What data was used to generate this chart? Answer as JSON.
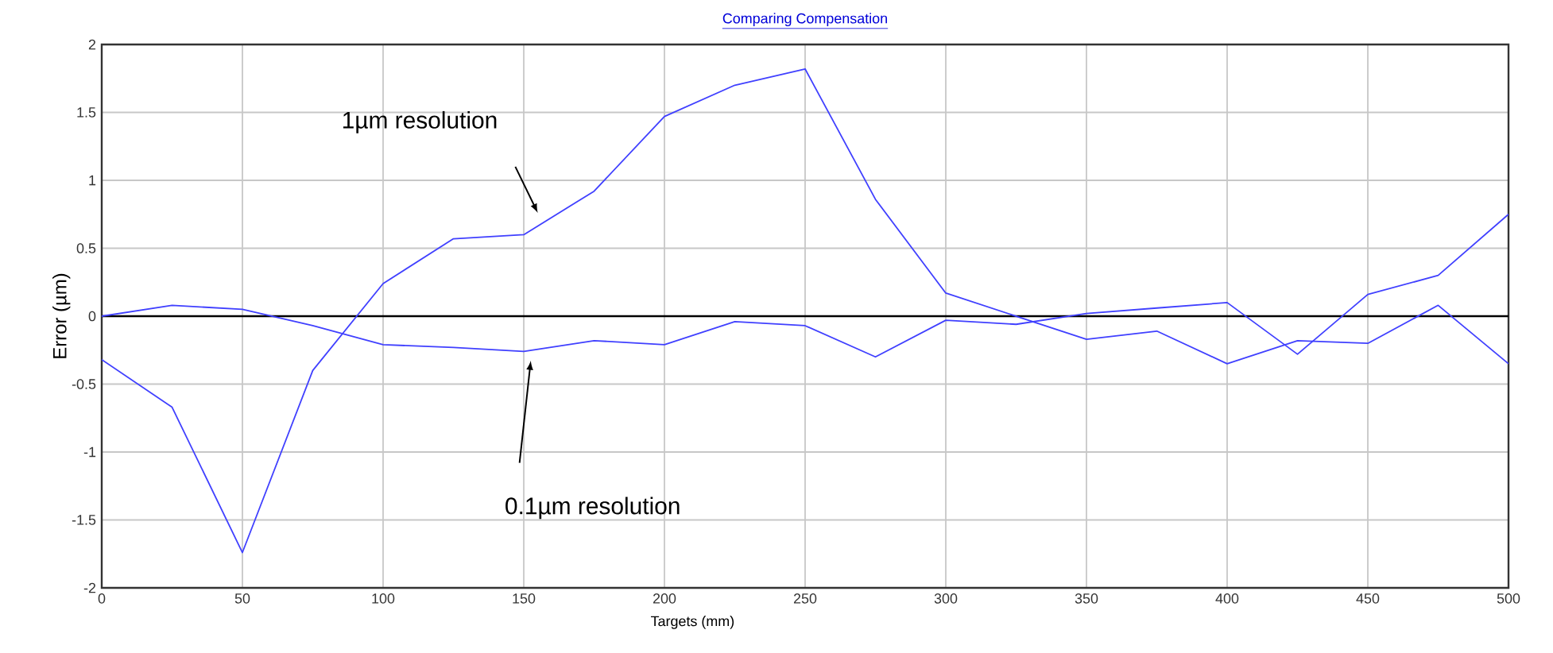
{
  "chart_data": {
    "type": "line",
    "title": "Comparing Compensation",
    "xlabel": "Targets (mm)",
    "ylabel": "Error (µm)",
    "x": [
      0,
      25,
      50,
      75,
      100,
      125,
      150,
      175,
      200,
      225,
      250,
      275,
      300,
      325,
      350,
      375,
      400,
      425,
      450,
      475,
      500
    ],
    "series": [
      {
        "color": "#4040ff",
        "values": [
          -0.32,
          -0.67,
          -1.74,
          -0.4,
          0.24,
          0.57,
          0.6,
          0.92,
          1.47,
          1.7,
          1.82,
          0.86,
          0.17,
          0.0,
          -0.17,
          -0.11,
          -0.35,
          -0.18,
          -0.2,
          0.08,
          -0.35
        ]
      },
      {
        "color": "#4040ff",
        "values": [
          0.0,
          0.08,
          0.05,
          -0.07,
          -0.21,
          -0.23,
          -0.26,
          -0.18,
          -0.21,
          -0.04,
          -0.07,
          -0.3,
          -0.03,
          -0.06,
          0.02,
          0.06,
          0.1,
          -0.28,
          0.16,
          0.3,
          0.75
        ]
      }
    ],
    "xlim": [
      0,
      500
    ],
    "xticks": [
      0,
      50,
      100,
      150,
      200,
      250,
      300,
      350,
      400,
      450,
      500
    ],
    "ylim": [
      -2,
      2
    ],
    "yticks": [
      -2,
      -1.5,
      -1,
      -0.5,
      0,
      0.5,
      1,
      1.5,
      2
    ],
    "grid": true,
    "marker": "none",
    "line_style": "solid",
    "ref_lines": [
      {
        "axis": "y",
        "value": 0,
        "color": "#000000"
      }
    ],
    "annotations": [
      "1µm resolution",
      "0.1µm resolution"
    ]
  }
}
